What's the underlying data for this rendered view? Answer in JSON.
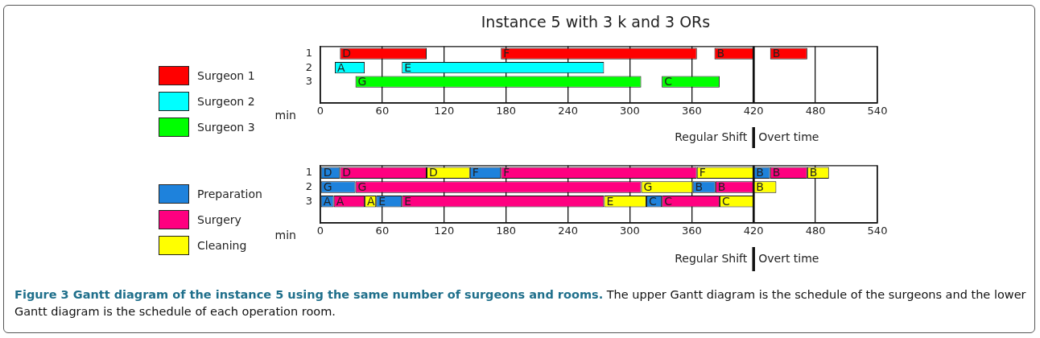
{
  "chart_data": [
    {
      "type": "bar",
      "title": "Instance 5 with 3 k and 3 ORs",
      "orientation": "horizontal",
      "categories": [
        "1",
        "2",
        "3",
        null
      ],
      "xlabel": "min",
      "xlim": [
        0,
        540
      ],
      "xticks": [
        0,
        60,
        120,
        180,
        240,
        300,
        360,
        420,
        480,
        540
      ],
      "grid": "x",
      "legend": "left",
      "series": [
        {
          "name": "Surgeon 1",
          "color": "#ff0000",
          "values": [
            84,
            null,
            null,
            null
          ],
          "base": [
            19,
            null,
            null,
            null
          ],
          "value_labels": [
            "D",
            null,
            null,
            null
          ]
        },
        {
          "color": "#ff0000",
          "values": [
            190,
            null,
            null,
            null
          ],
          "base": [
            175,
            null,
            null,
            null
          ],
          "value_labels": [
            "F",
            null,
            null,
            null
          ]
        },
        {
          "color": "#ff0000",
          "values": [
            38,
            null,
            null,
            null
          ],
          "base": [
            382,
            null,
            null,
            null
          ],
          "value_labels": [
            "B",
            null,
            null,
            null
          ]
        },
        {
          "color": "#ff0000",
          "values": [
            36,
            null,
            null,
            null
          ],
          "base": [
            436,
            null,
            null,
            null
          ],
          "value_labels": [
            "B",
            null,
            null,
            null
          ]
        },
        {
          "name": "Surgeon 2",
          "color": "#00ffff",
          "values": [
            null,
            29,
            null,
            null
          ],
          "base": [
            null,
            14,
            null,
            null
          ],
          "value_labels": [
            null,
            "A",
            null,
            null
          ]
        },
        {
          "color": "#00ffff",
          "values": [
            null,
            196,
            null,
            null
          ],
          "base": [
            null,
            79,
            null,
            null
          ],
          "value_labels": [
            null,
            "E",
            null,
            null
          ]
        },
        {
          "name": "Surgeon 3",
          "color": "#00ff00",
          "values": [
            null,
            null,
            277,
            null
          ],
          "base": [
            null,
            null,
            34,
            null
          ],
          "value_labels": [
            null,
            null,
            "G",
            null
          ]
        },
        {
          "color": "#00ff00",
          "values": [
            null,
            null,
            56,
            null
          ],
          "base": [
            null,
            null,
            331,
            null
          ],
          "value_labels": [
            null,
            null,
            "C",
            null
          ]
        }
      ],
      "ref_lines": [
        {
          "axis": "x",
          "value": 420,
          "color": "#111111"
        }
      ],
      "annotations": [
        "Regular Shift",
        "Overt time"
      ]
    },
    {
      "type": "bar",
      "orientation": "horizontal",
      "categories": [
        "1",
        "2",
        "3",
        null
      ],
      "xlabel": "min",
      "xlim": [
        0,
        540
      ],
      "xticks": [
        0,
        60,
        120,
        180,
        240,
        300,
        360,
        420,
        480,
        540
      ],
      "grid": "x",
      "legend": "left",
      "series": [
        {
          "name": "Preparation",
          "color": "#1e82dc",
          "values": [
            19,
            34,
            13,
            null
          ],
          "base": [
            0,
            0,
            0,
            null
          ],
          "value_labels": [
            "D",
            "G",
            "A",
            null
          ]
        },
        {
          "color": "#1e82dc",
          "values": [
            30,
            22,
            25,
            null
          ],
          "base": [
            145,
            361,
            54,
            null
          ],
          "value_labels": [
            "F",
            "B",
            "E",
            null
          ]
        },
        {
          "color": "#1e82dc",
          "values": [
            16,
            null,
            15,
            null
          ],
          "base": [
            420,
            null,
            316,
            null
          ],
          "value_labels": [
            "B",
            null,
            "C",
            null
          ]
        },
        {
          "name": "Surgery",
          "color": "#ff0080",
          "values": [
            84,
            277,
            30,
            null
          ],
          "base": [
            19,
            34,
            13,
            null
          ],
          "value_labels": [
            "D",
            "G",
            "A",
            null
          ]
        },
        {
          "color": "#ff0080",
          "values": [
            190,
            37,
            196,
            null
          ],
          "base": [
            175,
            383,
            79,
            null
          ],
          "value_labels": [
            "F",
            "B",
            "E",
            null
          ]
        },
        {
          "color": "#ff0080",
          "values": [
            36,
            null,
            56,
            null
          ],
          "base": [
            436,
            null,
            331,
            null
          ],
          "value_labels": [
            "B",
            null,
            "C",
            null
          ]
        },
        {
          "name": "Cleaning",
          "color": "#ffff00",
          "values": [
            42,
            50,
            11,
            null
          ],
          "base": [
            103,
            311,
            43,
            null
          ],
          "value_labels": [
            "D",
            "G",
            "A",
            null
          ]
        },
        {
          "color": "#ffff00",
          "values": [
            55,
            22,
            41,
            null
          ],
          "base": [
            365,
            420,
            275,
            null
          ],
          "value_labels": [
            "F",
            "B",
            "E",
            null
          ]
        },
        {
          "color": "#ffff00",
          "values": [
            21,
            null,
            33,
            null
          ],
          "base": [
            472,
            null,
            387,
            null
          ],
          "value_labels": [
            "B",
            null,
            "C",
            null
          ]
        }
      ],
      "ref_lines": [
        {
          "axis": "x",
          "value": 420,
          "color": "#111111"
        }
      ],
      "annotations": [
        "Regular Shift",
        "Overt time",
        "Figure 3 Gantt diagram of the instance 5 using the same number of surgeons and rooms.",
        "The upper Gantt diagram is the schedule of the surgeons and the lower Gantt diagram is the schedule of each operation room."
      ]
    }
  ]
}
